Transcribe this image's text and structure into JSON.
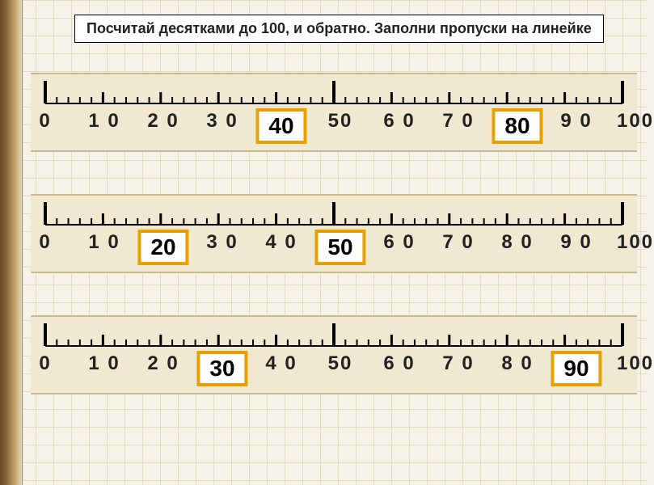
{
  "title": "Посчитай десятками до 100, и обратно. Заполни пропуски на линейке",
  "ruler": {
    "min": 0,
    "max": 100,
    "majorStep": 10,
    "minorStep": 2,
    "tick_color": "#000000",
    "band_bg": "#f0e8d0",
    "answer_border": "#e8a000",
    "answer_bg": "#ffffff",
    "label_fontsize": 24,
    "answer_fontsize": 28
  },
  "rows": [
    {
      "labels": [
        {
          "pos": 0,
          "text": "0"
        },
        {
          "pos": 10,
          "text": "1 0"
        },
        {
          "pos": 20,
          "text": "2 0"
        },
        {
          "pos": 30,
          "text": "3 0"
        },
        {
          "pos": 50,
          "text": "50"
        },
        {
          "pos": 60,
          "text": "6 0"
        },
        {
          "pos": 70,
          "text": "7 0"
        },
        {
          "pos": 90,
          "text": "9 0"
        },
        {
          "pos": 100,
          "text": "100"
        }
      ],
      "answers": [
        {
          "pos": 40,
          "text": "40"
        },
        {
          "pos": 80,
          "text": "80"
        }
      ]
    },
    {
      "labels": [
        {
          "pos": 0,
          "text": "0"
        },
        {
          "pos": 10,
          "text": "1 0"
        },
        {
          "pos": 30,
          "text": "3 0"
        },
        {
          "pos": 40,
          "text": "4 0"
        },
        {
          "pos": 60,
          "text": "6 0"
        },
        {
          "pos": 70,
          "text": "7 0"
        },
        {
          "pos": 80,
          "text": "8 0"
        },
        {
          "pos": 90,
          "text": "9 0"
        },
        {
          "pos": 100,
          "text": "100"
        }
      ],
      "answers": [
        {
          "pos": 20,
          "text": "20"
        },
        {
          "pos": 50,
          "text": "50"
        }
      ]
    },
    {
      "labels": [
        {
          "pos": 0,
          "text": "0"
        },
        {
          "pos": 10,
          "text": "1 0"
        },
        {
          "pos": 20,
          "text": "2 0"
        },
        {
          "pos": 40,
          "text": "4 0"
        },
        {
          "pos": 50,
          "text": "50"
        },
        {
          "pos": 60,
          "text": "6 0"
        },
        {
          "pos": 70,
          "text": "7 0"
        },
        {
          "pos": 80,
          "text": "8 0"
        },
        {
          "pos": 100,
          "text": "100"
        }
      ],
      "answers": [
        {
          "pos": 30,
          "text": "30"
        },
        {
          "pos": 90,
          "text": "90"
        }
      ]
    }
  ]
}
